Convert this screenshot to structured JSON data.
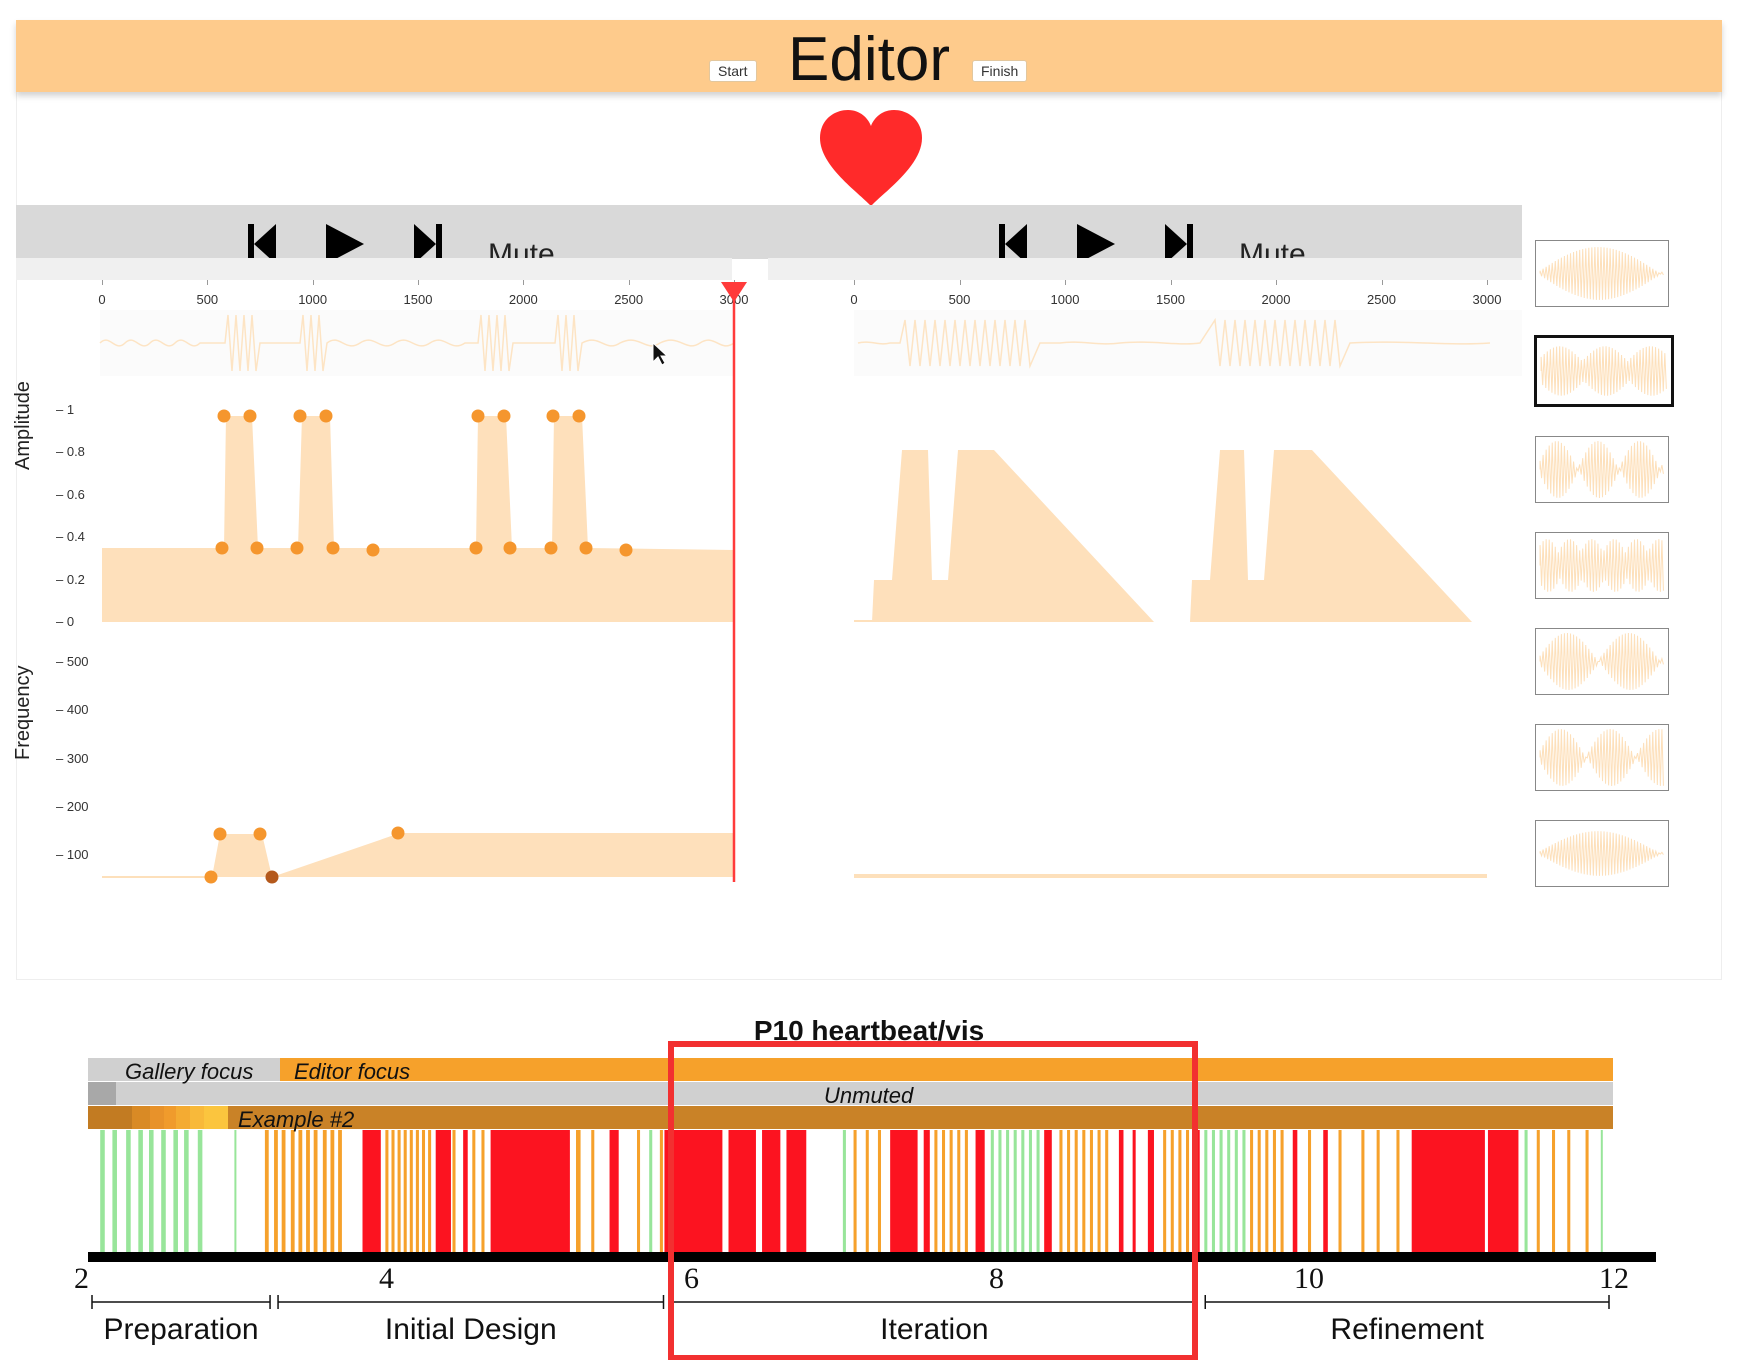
{
  "editor": {
    "title": "Editor",
    "start_label": "Start",
    "finish_label": "Finish",
    "heart_color": "#ff2a2a",
    "accent": "#fecb8c",
    "left_player": {
      "mute_label": "Mute",
      "muted": false
    },
    "right_player": {
      "mute_label": "Mute",
      "muted": false
    },
    "ruler_ticks": [
      "0",
      "500",
      "1000",
      "1500",
      "2000",
      "2500",
      "3000"
    ],
    "playhead_ms": 3000,
    "amplitude_axis": {
      "label": "Amplitude",
      "ticks": [
        "1",
        "0.8",
        "0.6",
        "0.4",
        "0.2",
        "0"
      ]
    },
    "frequency_axis": {
      "label": "Frequency",
      "ticks": [
        "500",
        "400",
        "300",
        "200",
        "100"
      ]
    },
    "gallery": {
      "count": 7,
      "selected_index": 1
    }
  },
  "timeline": {
    "title": "P10 heartbeat/vis",
    "focus_row": {
      "gallery_label": "Gallery focus",
      "editor_label": "Editor focus"
    },
    "mute_row": {
      "label": "Unmuted"
    },
    "example_row": {
      "label": "Example #2"
    },
    "axis_ticks": [
      "2",
      "4",
      "6",
      "8",
      "10",
      "12"
    ],
    "axis_range": [
      2,
      12
    ],
    "phases": [
      {
        "label": "Preparation",
        "start": 2,
        "end": 3.22
      },
      {
        "label": "Initial Design",
        "start": 3.22,
        "end": 5.8
      },
      {
        "label": "Iteration",
        "start": 5.8,
        "end": 9.3
      },
      {
        "label": "Refinement",
        "start": 9.3,
        "end": 12
      }
    ],
    "highlight_phase": "Iteration",
    "colors": {
      "gallery": "#98e59a",
      "editor": "#f6a12b",
      "edit": "#fc1320",
      "example": "#c98227",
      "muted": "#d0d0d0"
    }
  }
}
